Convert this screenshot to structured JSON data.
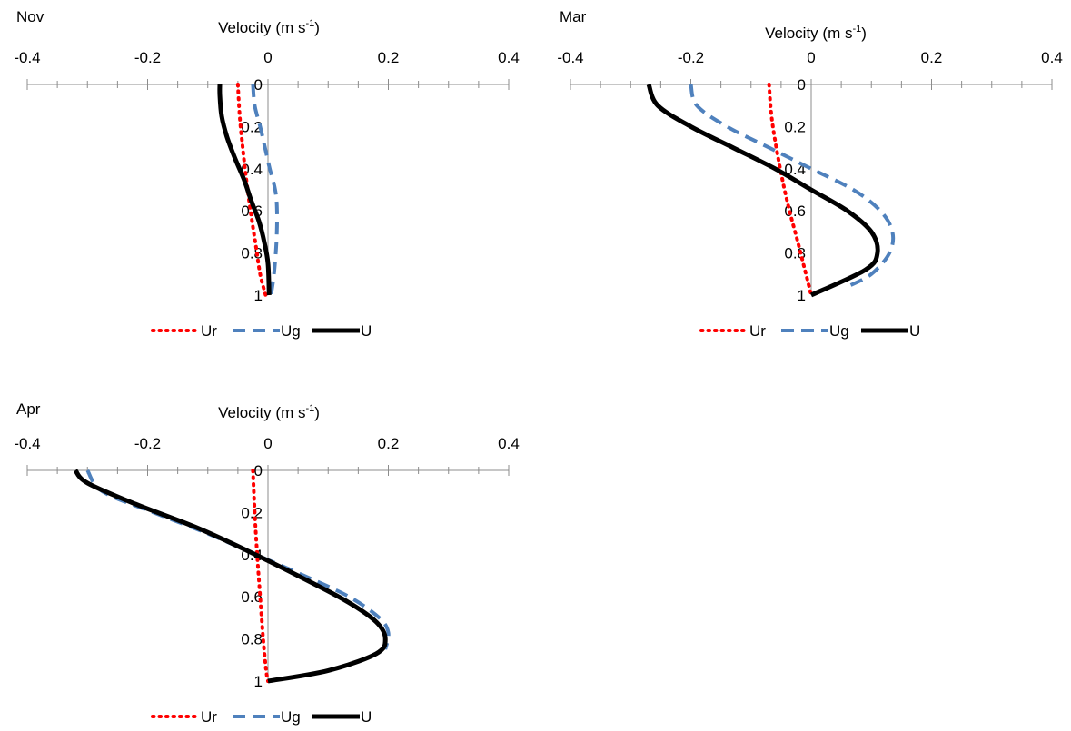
{
  "colors": {
    "Ur": "#ff0000",
    "Ug": "#4f81bd",
    "U": "#000000",
    "axis": "#8c8c8c"
  },
  "chart_data": [
    {
      "type": "line",
      "title": "Nov",
      "xlabel": "Velocity (m s-1)",
      "xlabel_unit_exponent": "-1",
      "xlim": [
        -0.4,
        0.4
      ],
      "ylim": [
        0,
        1
      ],
      "y_reversed": true,
      "x_ticks": [
        "-0.4",
        "-0.2",
        "0",
        "0.2",
        "0.4"
      ],
      "y_ticks": [
        "0",
        "0.2",
        "0.4",
        "0.6",
        "0.8",
        "1"
      ],
      "legend_position": "bottom",
      "series": [
        {
          "name": "Ur",
          "style": "dotted",
          "x": [
            -0.05,
            -0.047,
            -0.042,
            -0.036,
            -0.029,
            -0.021,
            -0.013,
            -0.004
          ],
          "y": [
            0,
            0.15,
            0.3,
            0.45,
            0.6,
            0.75,
            0.9,
            1.0
          ]
        },
        {
          "name": "Ug",
          "style": "dashed",
          "x": [
            -0.025,
            -0.022,
            -0.013,
            -0.005,
            0.003,
            0.012,
            0.015,
            0.014,
            0.01,
            0.005
          ],
          "y": [
            0,
            0.1,
            0.2,
            0.3,
            0.4,
            0.5,
            0.6,
            0.75,
            0.9,
            1.0
          ]
        },
        {
          "name": "U",
          "style": "solid",
          "x": [
            -0.08,
            -0.08,
            -0.077,
            -0.068,
            -0.055,
            -0.04,
            -0.028,
            -0.015,
            -0.006,
            0.0,
            0.002
          ],
          "y": [
            0,
            0.05,
            0.15,
            0.25,
            0.35,
            0.45,
            0.55,
            0.65,
            0.75,
            0.85,
            1.0
          ]
        }
      ]
    },
    {
      "type": "line",
      "title": "Mar",
      "xlabel": "Velocity (m s-1)",
      "xlabel_unit_exponent": "-1",
      "xlim": [
        -0.4,
        0.4
      ],
      "ylim": [
        0,
        1
      ],
      "y_reversed": true,
      "x_ticks": [
        "-0.4",
        "-0.2",
        "0",
        "0.2",
        "0.4"
      ],
      "y_ticks": [
        "0",
        "0.2",
        "0.4",
        "0.6",
        "0.8",
        "1"
      ],
      "legend_position": "bottom",
      "series": [
        {
          "name": "Ur",
          "style": "dotted",
          "x": [
            -0.07,
            -0.066,
            -0.058,
            -0.048,
            -0.036,
            -0.022,
            -0.007,
            0.0
          ],
          "y": [
            0,
            0.15,
            0.3,
            0.45,
            0.6,
            0.75,
            0.92,
            1.0
          ]
        },
        {
          "name": "Ug",
          "style": "dashed",
          "x": [
            -0.2,
            -0.19,
            -0.14,
            -0.07,
            0.0,
            0.07,
            0.115,
            0.135,
            0.13,
            0.1,
            0.06
          ],
          "y": [
            0,
            0.1,
            0.2,
            0.3,
            0.4,
            0.5,
            0.6,
            0.7,
            0.8,
            0.9,
            0.96
          ]
        },
        {
          "name": "U",
          "style": "solid",
          "x": [
            -0.27,
            -0.255,
            -0.2,
            -0.13,
            -0.06,
            0.0,
            0.06,
            0.1,
            0.11,
            0.09,
            0.0
          ],
          "y": [
            0,
            0.1,
            0.2,
            0.3,
            0.4,
            0.5,
            0.6,
            0.7,
            0.8,
            0.88,
            1.0
          ]
        }
      ]
    },
    {
      "type": "line",
      "title": "Apr",
      "xlabel": "Velocity (m s-1)",
      "xlabel_unit_exponent": "-1",
      "xlim": [
        -0.4,
        0.4
      ],
      "ylim": [
        0,
        1
      ],
      "y_reversed": true,
      "x_ticks": [
        "-0.4",
        "-0.2",
        "0",
        "0.2",
        "0.4"
      ],
      "y_ticks": [
        "0",
        "0.2",
        "0.4",
        "0.6",
        "0.8",
        "1"
      ],
      "legend_position": "bottom",
      "series": [
        {
          "name": "Ur",
          "style": "dotted",
          "x": [
            -0.025,
            -0.022,
            -0.018,
            -0.013,
            -0.008,
            -0.003,
            0.0
          ],
          "y": [
            0,
            0.2,
            0.4,
            0.6,
            0.8,
            0.95,
            1.0
          ]
        },
        {
          "name": "Ug",
          "style": "dashed",
          "x": [
            -0.3,
            -0.275,
            -0.19,
            -0.1,
            -0.02,
            0.06,
            0.135,
            0.185,
            0.2,
            0.195
          ],
          "y": [
            0,
            0.1,
            0.2,
            0.3,
            0.4,
            0.5,
            0.6,
            0.7,
            0.77,
            0.85
          ]
        },
        {
          "name": "U",
          "style": "solid",
          "x": [
            -0.32,
            -0.3,
            -0.22,
            -0.12,
            -0.035,
            0.05,
            0.13,
            0.18,
            0.195,
            0.18,
            0.1,
            0.0
          ],
          "y": [
            0,
            0.06,
            0.16,
            0.27,
            0.38,
            0.5,
            0.62,
            0.72,
            0.8,
            0.87,
            0.95,
            1.0
          ]
        }
      ]
    }
  ]
}
